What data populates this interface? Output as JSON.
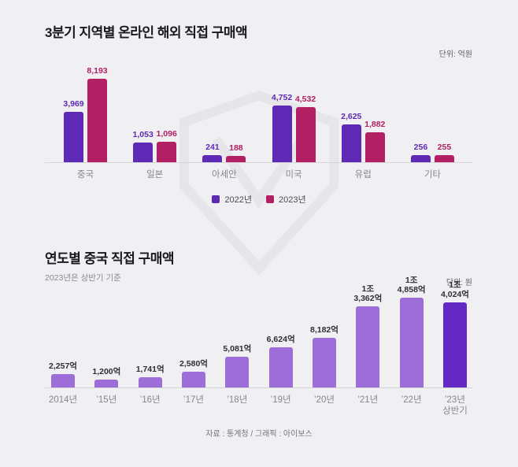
{
  "colors": {
    "background": "#f0eff1",
    "title": "#1a1a1e",
    "axis": "#d6d5da",
    "category_label": "#87868d",
    "unit_label": "#5f5f66",
    "footer_text": "#76757c",
    "series_2022": "#5e2ab5",
    "series_2023": "#b21f63",
    "bottom_bar": "#9d6ed8",
    "bottom_bar_last": "#6429c4",
    "bottom_value_label": "#2f2e33",
    "watermark": "#e6e5ea"
  },
  "chart_data": [
    {
      "type": "bar",
      "title": "3분기 지역별 온라인 해외 직접 구매액",
      "unit_label": "단위: 억원",
      "legend_position": "bottom-center",
      "grid": false,
      "ymax": 8193,
      "categories": [
        "중국",
        "일본",
        "아세안",
        "미국",
        "유럽",
        "기타"
      ],
      "series": [
        {
          "name": "2022년",
          "color_key": "series_2022",
          "values": [
            3969,
            1053,
            241,
            4752,
            2625,
            256
          ],
          "labels": [
            "3,969",
            "1,053",
            "241",
            "4,752",
            "2,625",
            "256"
          ]
        },
        {
          "name": "2023년",
          "color_key": "series_2023",
          "values": [
            8193,
            1096,
            188,
            4532,
            1882,
            255
          ],
          "labels": [
            "8,193",
            "1,096",
            "188",
            "4,532",
            "1,882",
            "255"
          ]
        }
      ]
    },
    {
      "type": "bar",
      "title": "연도별 중국 직접 구매액",
      "subtitle": "2023년은 상반기 기준",
      "unit_label": "단위: 원",
      "grid": false,
      "ymax": 14858,
      "unit_note": "values in 억원",
      "categories": [
        [
          "2014년"
        ],
        [
          "’15년"
        ],
        [
          "’16년"
        ],
        [
          "’17년"
        ],
        [
          "’18년"
        ],
        [
          "’19년"
        ],
        [
          "’20년"
        ],
        [
          "’21년"
        ],
        [
          "’22년"
        ],
        [
          "’23년",
          "상반기"
        ]
      ],
      "values": [
        2257,
        1200,
        1741,
        2580,
        5081,
        6624,
        8182,
        13362,
        14858,
        14024
      ],
      "value_labels": [
        [
          "2,257억"
        ],
        [
          "1,200억"
        ],
        [
          "1,741억"
        ],
        [
          "2,580억"
        ],
        [
          "5,081억"
        ],
        [
          "6,624억"
        ],
        [
          "8,182억"
        ],
        [
          "1조",
          "3,362억"
        ],
        [
          "1조",
          "4,858억"
        ],
        [
          "1조",
          "4,024억"
        ]
      ]
    }
  ],
  "footer": {
    "credit": "자료 : 통계청 / 그래픽 : 아이보스"
  }
}
